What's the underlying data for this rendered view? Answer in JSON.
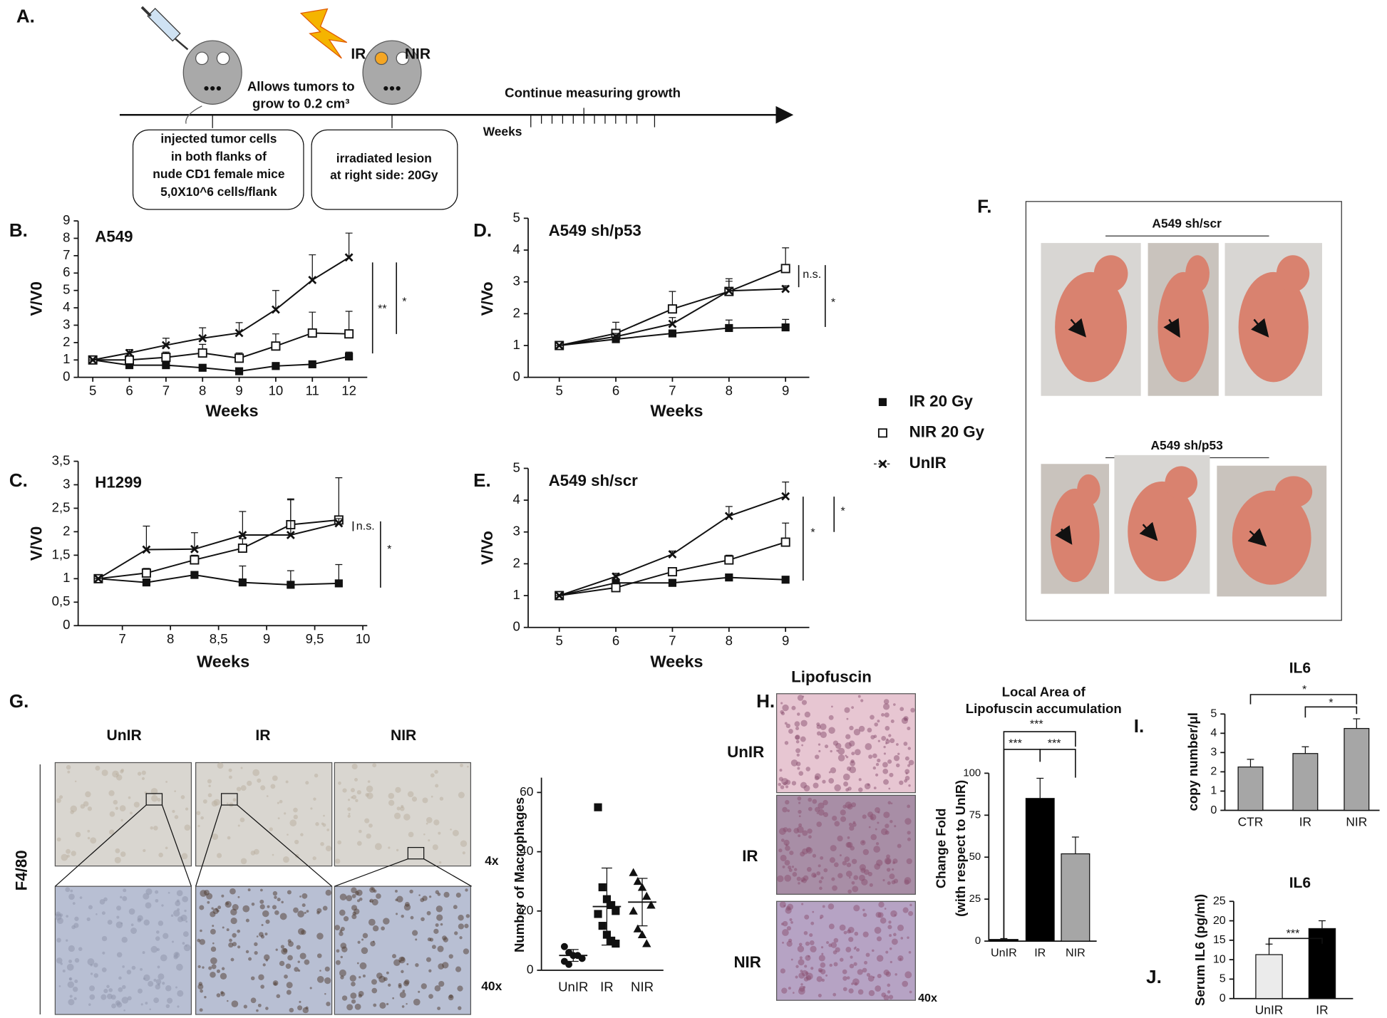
{
  "panel_labels": [
    "A.",
    "B.",
    "C.",
    "D.",
    "E.",
    "F.",
    "G.",
    "H.",
    "I.",
    "J."
  ],
  "schematic": {
    "ir": "IR",
    "nir": "NIR",
    "growth": [
      "Allows tumors to",
      "grow to 0.2 cm³"
    ],
    "measuring": "Continue measuring growth",
    "weeks": "Weeks",
    "box1": [
      "injected tumor cells",
      "in both flanks of",
      "nude CD1 female mice",
      "5,0X10^6 cells/flank"
    ],
    "box2": [
      "irradiated lesion",
      "at right side: 20Gy"
    ]
  },
  "photos_f": {
    "top": "A549 sh/scr",
    "bottom": "A549 sh/p53"
  },
  "histology_g": {
    "columns": [
      "UnIR",
      "IR",
      "NIR"
    ],
    "stain": "F4/80",
    "magnifications": [
      "4x",
      "40x"
    ]
  },
  "histology_h": {
    "title": "Lipofuscin",
    "rows": [
      "UnIR",
      "IR",
      "NIR"
    ],
    "magnification": "40x"
  },
  "chart_data": [
    {
      "type": "line",
      "title": "A549",
      "xlabel": "Weeks",
      "ylabel": "V/V0",
      "x": [
        5,
        6,
        7,
        8,
        9,
        10,
        11,
        12
      ],
      "xlim": [
        4.6,
        12.5
      ],
      "xticks": [
        5,
        6,
        7,
        8,
        9,
        10,
        11,
        12
      ],
      "ylim": [
        0,
        9
      ],
      "yticks": [
        0,
        1,
        2,
        3,
        4,
        5,
        6,
        7,
        8,
        9
      ],
      "series": [
        {
          "name": "IR 20 Gy",
          "marker": "filled-square",
          "values": [
            1,
            0.7,
            0.7,
            0.55,
            0.35,
            0.65,
            0.75,
            1.2
          ],
          "errors": [
            0,
            0.1,
            0.1,
            0.1,
            0.1,
            0.2,
            0.15,
            0.25
          ]
        },
        {
          "name": "NIR 20 Gy",
          "marker": "open-square",
          "values": [
            1,
            1,
            1.15,
            1.4,
            1.1,
            1.8,
            2.55,
            2.5
          ],
          "errors": [
            0,
            0.1,
            0.3,
            0.5,
            0.3,
            0.7,
            1.2,
            1.3
          ]
        },
        {
          "name": "UnIR",
          "marker": "x-cross",
          "values": [
            1,
            1.4,
            1.85,
            2.25,
            2.55,
            3.9,
            5.6,
            6.9
          ],
          "errors": [
            0,
            0.2,
            0.4,
            0.6,
            0.6,
            1.1,
            1.45,
            1.4
          ]
        }
      ],
      "annotations": [
        "**",
        "*"
      ]
    },
    {
      "type": "line",
      "title": "H1299",
      "xlabel": "Weeks",
      "ylabel": "V/V0",
      "categories": [
        "7",
        "8",
        "8,5",
        "9",
        "9,5",
        "10"
      ],
      "ylim": [
        0,
        3.5
      ],
      "yticks": [
        0,
        {
          "value": 0.5,
          "label": "0,5"
        },
        1,
        {
          "value": 1.5,
          "label": "1,5"
        },
        2,
        {
          "value": 2.5,
          "label": "2,5"
        },
        3,
        {
          "value": 3.5,
          "label": "3,5"
        }
      ],
      "series": [
        {
          "marker": "filled-square",
          "values": [
            1,
            0.92,
            1.08,
            0.92,
            0.87,
            0.9
          ],
          "errors": [
            0,
            0.05,
            0.05,
            0.35,
            0.3,
            0.4
          ]
        },
        {
          "marker": "open-square",
          "values": [
            1,
            1.12,
            1.4,
            1.65,
            2.15,
            2.25
          ],
          "errors": [
            0,
            0.1,
            0.1,
            0.2,
            0.55,
            0.9
          ]
        },
        {
          "marker": "x-cross",
          "values": [
            1,
            1.62,
            1.63,
            1.93,
            1.93,
            2.18
          ],
          "errors": [
            0,
            0.5,
            0.35,
            0.5,
            0.75,
            0.1
          ]
        }
      ],
      "annotations": [
        "n.s.",
        "*"
      ]
    },
    {
      "type": "line",
      "title": "A549 sh/p53",
      "xlabel": "Weeks",
      "ylabel": "V/Vo",
      "x": [
        5,
        6,
        7,
        8,
        9
      ],
      "xlim": [
        4.45,
        9.42
      ],
      "xticks": [
        5,
        6,
        7,
        8,
        9
      ],
      "ylim": [
        0,
        5
      ],
      "yticks": [
        0,
        1,
        2,
        3,
        4,
        5
      ],
      "series": [
        {
          "marker": "filled-square",
          "values": [
            1,
            1.2,
            1.38,
            1.55,
            1.57
          ],
          "errors": [
            0,
            0.05,
            0.1,
            0.25,
            0.25
          ]
        },
        {
          "marker": "open-square",
          "values": [
            1,
            1.38,
            2.15,
            2.7,
            3.42
          ],
          "errors": [
            0,
            0.35,
            0.55,
            0.4,
            0.65
          ]
        },
        {
          "marker": "x-cross",
          "values": [
            1,
            1.28,
            1.68,
            2.72,
            2.78
          ],
          "errors": [
            0,
            0.1,
            0.2,
            0.3,
            0.1
          ]
        }
      ],
      "annotations": [
        "n.s.",
        "*"
      ]
    },
    {
      "type": "line",
      "title": "A549 sh/scr",
      "xlabel": "Weeks",
      "ylabel": "V/Vo",
      "x": [
        5,
        6,
        7,
        8,
        9
      ],
      "xlim": [
        4.45,
        9.42
      ],
      "xticks": [
        5,
        6,
        7,
        8,
        9
      ],
      "ylim": [
        0,
        5
      ],
      "yticks": [
        0,
        1,
        2,
        3,
        4,
        5
      ],
      "series": [
        {
          "marker": "filled-square",
          "values": [
            1,
            1.4,
            1.4,
            1.57,
            1.5
          ],
          "errors": [
            0,
            0.05,
            0.1,
            0.1,
            0.1
          ]
        },
        {
          "marker": "open-square",
          "values": [
            1,
            1.25,
            1.75,
            2.12,
            2.68
          ],
          "errors": [
            0,
            0.1,
            0.1,
            0.15,
            0.6
          ]
        },
        {
          "marker": "x-cross",
          "values": [
            1,
            1.6,
            2.3,
            3.5,
            4.12
          ],
          "errors": [
            0,
            0.1,
            0.1,
            0.3,
            0.45
          ]
        }
      ],
      "annotations": [
        "*",
        "*"
      ]
    },
    {
      "type": "strip",
      "ylabel": "Number of Macrophages",
      "categories": [
        "UnIR",
        "IR",
        "NIR"
      ],
      "ylim": [
        0,
        65
      ],
      "yticks": [
        0,
        20,
        40,
        60
      ],
      "series": [
        {
          "marker": "circle",
          "values": [
            8,
            6,
            5,
            5,
            4,
            3,
            2
          ],
          "mean": 5,
          "sd": 2
        },
        {
          "marker": "square",
          "values": [
            55,
            28,
            24,
            22,
            20,
            19,
            15,
            12,
            10,
            9
          ],
          "mean": 21.5,
          "sd": 13
        },
        {
          "marker": "triangle",
          "values": [
            33,
            30,
            28,
            25,
            22,
            20,
            14,
            12,
            9
          ],
          "mean": 23,
          "sd": 8
        }
      ]
    },
    {
      "type": "bar",
      "title": [
        "Local Area of",
        "Lipofuscin accumulation"
      ],
      "ylabel": [
        "Change Fold",
        "(with respect to UnIR)"
      ],
      "categories": [
        "UnIR",
        "IR",
        "NIR"
      ],
      "values": [
        1,
        85,
        52
      ],
      "errors": [
        0.5,
        12,
        10
      ],
      "colors": [
        "#000000",
        "#000000",
        "#a6a6a6"
      ],
      "ylim": [
        0,
        100
      ],
      "yticks": [
        0,
        25,
        50,
        75,
        100
      ],
      "annotations": [
        "***",
        "***",
        "***"
      ]
    },
    {
      "type": "bar",
      "title": "IL6",
      "ylabel": "copy number/μl",
      "categories": [
        "CTR",
        "IR",
        "NIR"
      ],
      "values": [
        2.25,
        2.95,
        4.25
      ],
      "errors": [
        0.4,
        0.35,
        0.5
      ],
      "colors": [
        "#a6a6a6",
        "#a6a6a6",
        "#a6a6a6"
      ],
      "ylim": [
        0,
        5
      ],
      "yticks": [
        0,
        1,
        2,
        3,
        4,
        5
      ],
      "annotations": [
        "*",
        "*"
      ]
    },
    {
      "type": "bar",
      "title": "IL6",
      "ylabel": "Serum IL6 (pg/ml)",
      "categories": [
        "UnIR",
        "IR"
      ],
      "values": [
        11.3,
        18
      ],
      "errors": [
        2.7,
        2
      ],
      "colors": [
        "#ebebeb",
        "#000000"
      ],
      "ylim": [
        0,
        25
      ],
      "yticks": [
        0,
        5,
        10,
        15,
        20,
        25
      ],
      "annotations": [
        "***"
      ]
    }
  ]
}
